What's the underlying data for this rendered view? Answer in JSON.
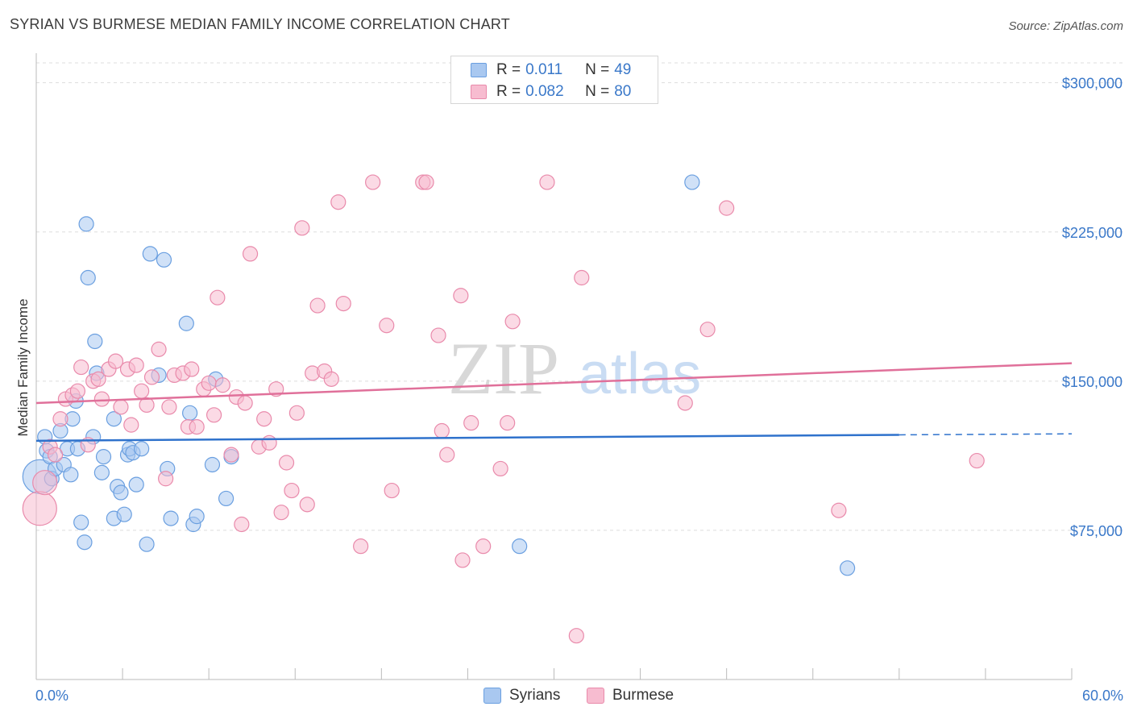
{
  "header": {
    "title": "SYRIAN VS BURMESE MEDIAN FAMILY INCOME CORRELATION CHART",
    "source": "Source: ZipAtlas.com"
  },
  "legend": {
    "rows": [
      {
        "r_label": "R =",
        "r_value": "0.011",
        "n_label": "N =",
        "n_value": "49"
      },
      {
        "r_label": "R =",
        "r_value": "0.082",
        "n_label": "N =",
        "n_value": "80"
      }
    ]
  },
  "bottom_legend": {
    "series_a": "Syrians",
    "series_b": "Burmese"
  },
  "watermark": {
    "zip": "ZIP",
    "atlas": "atlas"
  },
  "colors": {
    "syrians_fill": "#a9c8f0",
    "syrians_stroke": "#6a9fe0",
    "syrians_line": "#2f72cc",
    "burmese_fill": "#f7bcd0",
    "burmese_stroke": "#e98aab",
    "burmese_line": "#e0709a",
    "grid": "#dddddd",
    "axis_text": "#3a78c9"
  },
  "chart_data": {
    "type": "scatter",
    "title": "SYRIAN VS BURMESE MEDIAN FAMILY INCOME CORRELATION CHART",
    "xlabel": "",
    "ylabel": "Median Family Income",
    "xlim": [
      0,
      60
    ],
    "ylim": [
      0,
      310000
    ],
    "x_tick_labels": [
      {
        "value": 0,
        "label": "0.0%"
      },
      {
        "value": 60,
        "label": "60.0%"
      }
    ],
    "y_ticks": [
      {
        "value": 75000,
        "label": "$75,000"
      },
      {
        "value": 150000,
        "label": "$150,000"
      },
      {
        "value": 225000,
        "label": "$225,000"
      },
      {
        "value": 300000,
        "label": "$300,000"
      }
    ],
    "series": [
      {
        "name": "Syrians",
        "r": 0.011,
        "n": 49,
        "trend": {
          "x0": 0,
          "y0": 120000,
          "x1": 50,
          "y1": 123000,
          "x_dashed_end": 60,
          "y_dashed_end": 123500
        },
        "points": [
          [
            0.2,
            102000,
            3
          ],
          [
            0.5,
            122000,
            1
          ],
          [
            0.6,
            115000,
            1
          ],
          [
            0.8,
            112000,
            1
          ],
          [
            0.9,
            101000,
            1
          ],
          [
            1.1,
            106000,
            1
          ],
          [
            1.4,
            125000,
            1
          ],
          [
            1.6,
            108000,
            1
          ],
          [
            1.8,
            116000,
            1
          ],
          [
            2.0,
            103000,
            1
          ],
          [
            2.1,
            131000,
            1
          ],
          [
            2.3,
            140000,
            1
          ],
          [
            2.6,
            79000,
            1
          ],
          [
            2.9,
            229000,
            1
          ],
          [
            3.0,
            202000,
            1
          ],
          [
            3.3,
            122000,
            1
          ],
          [
            3.4,
            170000,
            1
          ],
          [
            3.5,
            154000,
            1
          ],
          [
            3.8,
            104000,
            1
          ],
          [
            3.9,
            112000,
            1
          ],
          [
            4.5,
            131000,
            1
          ],
          [
            4.5,
            81000,
            1
          ],
          [
            4.7,
            97000,
            1
          ],
          [
            4.9,
            94000,
            1
          ],
          [
            5.1,
            83000,
            1
          ],
          [
            5.3,
            113000,
            1
          ],
          [
            5.4,
            116000,
            1
          ],
          [
            5.6,
            114000,
            1
          ],
          [
            5.8,
            98000,
            1
          ],
          [
            6.1,
            116000,
            1
          ],
          [
            6.4,
            68000,
            1
          ],
          [
            6.6,
            214000,
            1
          ],
          [
            7.1,
            153000,
            1
          ],
          [
            7.4,
            211000,
            1
          ],
          [
            7.6,
            106000,
            1
          ],
          [
            7.8,
            81000,
            1
          ],
          [
            8.7,
            179000,
            1
          ],
          [
            8.9,
            134000,
            1
          ],
          [
            9.1,
            78000,
            1
          ],
          [
            9.3,
            82000,
            1
          ],
          [
            10.2,
            108000,
            1
          ],
          [
            10.4,
            151000,
            1
          ],
          [
            11.3,
            112000,
            1
          ],
          [
            11.0,
            91000,
            1
          ],
          [
            2.8,
            69000,
            1
          ],
          [
            2.4,
            116000,
            1
          ],
          [
            28.0,
            67000,
            1
          ],
          [
            38.0,
            250000,
            1
          ],
          [
            47.0,
            56000,
            1
          ]
        ]
      },
      {
        "name": "Burmese",
        "r": 0.082,
        "n": 80,
        "trend": {
          "x0": 0,
          "y0": 139000,
          "x1": 60,
          "y1": 159000
        },
        "points": [
          [
            0.2,
            86000,
            3
          ],
          [
            0.5,
            99000,
            2
          ],
          [
            0.8,
            117000,
            1
          ],
          [
            1.1,
            113000,
            1
          ],
          [
            1.4,
            131000,
            1
          ],
          [
            1.7,
            141000,
            1
          ],
          [
            2.1,
            143000,
            1
          ],
          [
            2.4,
            145000,
            1
          ],
          [
            2.6,
            157000,
            1
          ],
          [
            3.0,
            118000,
            1
          ],
          [
            3.3,
            150000,
            1
          ],
          [
            3.6,
            151000,
            1
          ],
          [
            3.8,
            141000,
            1
          ],
          [
            4.2,
            156000,
            1
          ],
          [
            4.6,
            160000,
            1
          ],
          [
            4.9,
            137000,
            1
          ],
          [
            5.3,
            156000,
            1
          ],
          [
            5.5,
            128000,
            1
          ],
          [
            5.8,
            158000,
            1
          ],
          [
            6.1,
            145000,
            1
          ],
          [
            6.4,
            138000,
            1
          ],
          [
            6.7,
            152000,
            1
          ],
          [
            7.1,
            166000,
            1
          ],
          [
            7.5,
            101000,
            1
          ],
          [
            7.7,
            137000,
            1
          ],
          [
            8.0,
            153000,
            1
          ],
          [
            8.5,
            154000,
            1
          ],
          [
            8.8,
            127000,
            1
          ],
          [
            9.0,
            156000,
            1
          ],
          [
            9.3,
            127000,
            1
          ],
          [
            9.7,
            146000,
            1
          ],
          [
            10.0,
            149000,
            1
          ],
          [
            10.3,
            133000,
            1
          ],
          [
            10.5,
            192000,
            1
          ],
          [
            10.8,
            148000,
            1
          ],
          [
            11.3,
            113000,
            1
          ],
          [
            11.6,
            142000,
            1
          ],
          [
            11.9,
            78000,
            1
          ],
          [
            12.1,
            139000,
            1
          ],
          [
            12.4,
            214000,
            1
          ],
          [
            12.9,
            117000,
            1
          ],
          [
            13.2,
            131000,
            1
          ],
          [
            13.5,
            119000,
            1
          ],
          [
            13.9,
            146000,
            1
          ],
          [
            14.2,
            84000,
            1
          ],
          [
            14.5,
            109000,
            1
          ],
          [
            14.8,
            95000,
            1
          ],
          [
            15.1,
            134000,
            1
          ],
          [
            15.4,
            227000,
            1
          ],
          [
            15.7,
            88000,
            1
          ],
          [
            16.0,
            154000,
            1
          ],
          [
            16.3,
            188000,
            1
          ],
          [
            16.7,
            155000,
            1
          ],
          [
            17.1,
            151000,
            1
          ],
          [
            17.5,
            240000,
            1
          ],
          [
            17.8,
            189000,
            1
          ],
          [
            18.8,
            67000,
            1
          ],
          [
            19.5,
            250000,
            1
          ],
          [
            20.3,
            178000,
            1
          ],
          [
            20.6,
            95000,
            1
          ],
          [
            22.4,
            250000,
            1
          ],
          [
            22.6,
            250000,
            1
          ],
          [
            23.3,
            173000,
            1
          ],
          [
            23.5,
            125000,
            1
          ],
          [
            23.8,
            113000,
            1
          ],
          [
            24.6,
            193000,
            1
          ],
          [
            24.7,
            60000,
            1
          ],
          [
            25.2,
            129000,
            1
          ],
          [
            25.9,
            67000,
            1
          ],
          [
            26.9,
            106000,
            1
          ],
          [
            27.3,
            129000,
            1
          ],
          [
            27.6,
            180000,
            1
          ],
          [
            29.6,
            250000,
            1
          ],
          [
            31.3,
            22000,
            1
          ],
          [
            31.6,
            202000,
            1
          ],
          [
            37.6,
            139000,
            1
          ],
          [
            38.9,
            176000,
            1
          ],
          [
            40.0,
            237000,
            1
          ],
          [
            46.5,
            85000,
            1
          ],
          [
            54.5,
            110000,
            1
          ]
        ]
      }
    ]
  }
}
